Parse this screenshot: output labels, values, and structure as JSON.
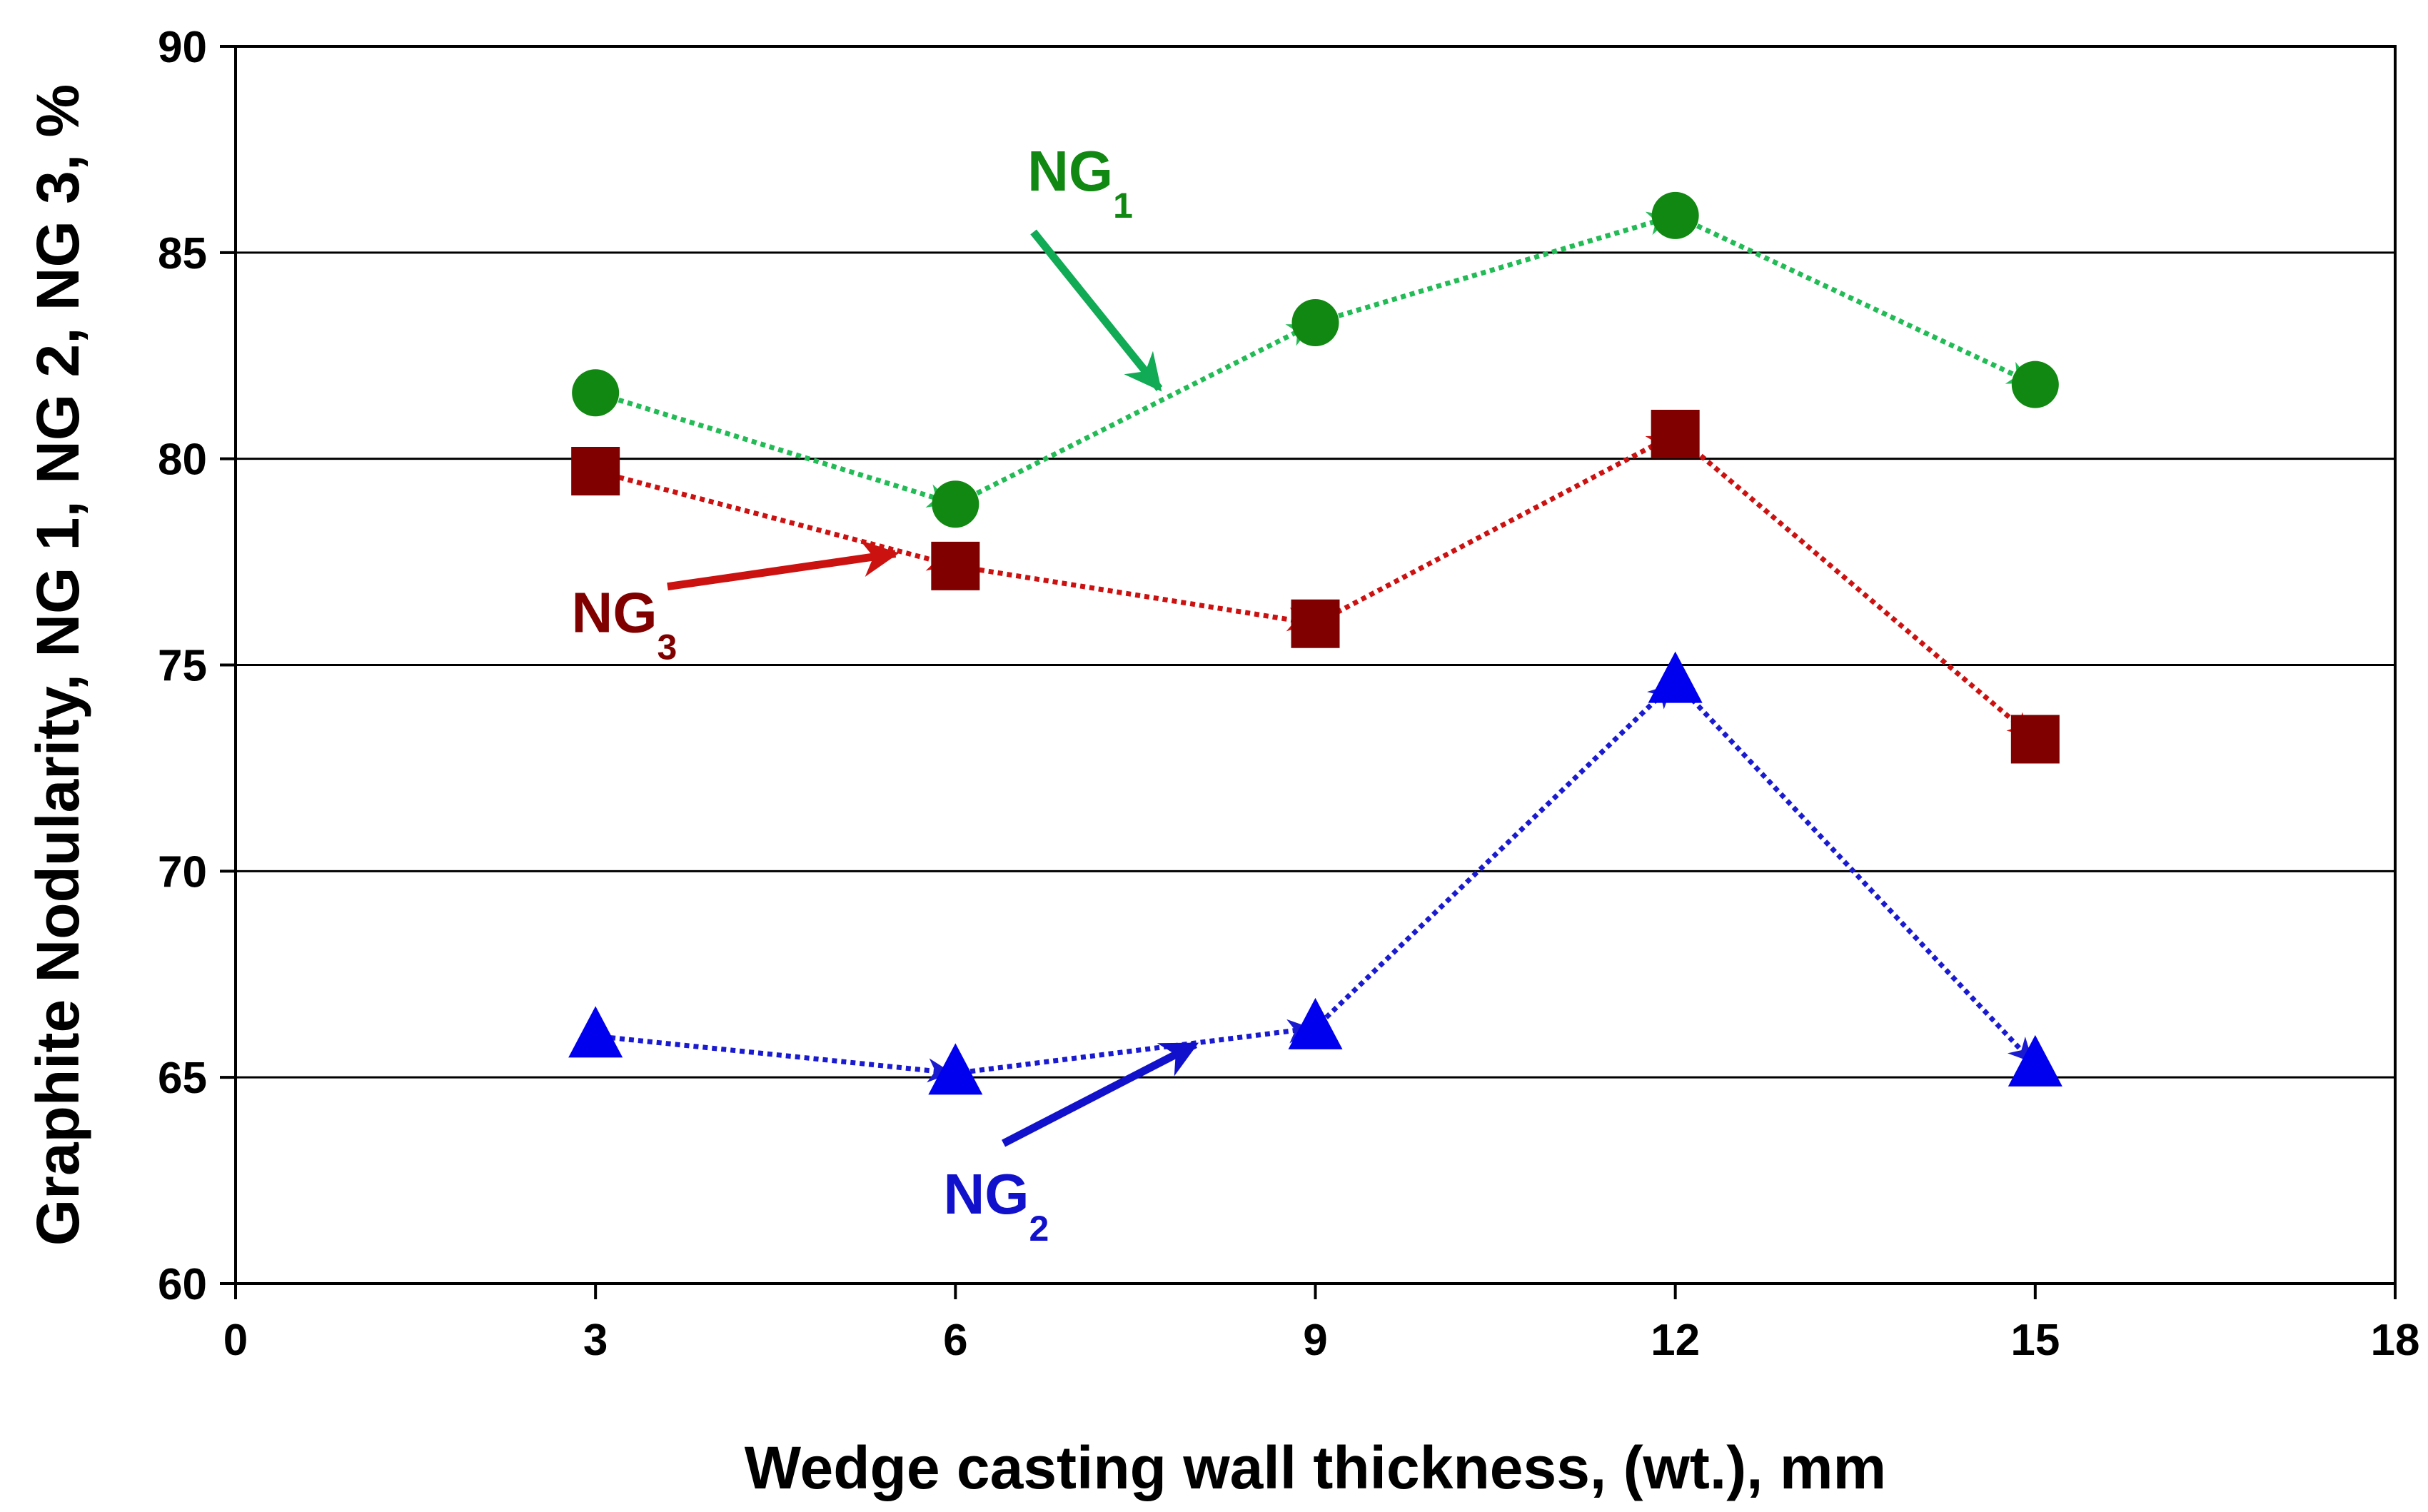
{
  "chart_data": {
    "type": "line",
    "title": "",
    "xlabel": "Wedge casting wall thickness, (wt.), mm",
    "ylabel": "Graphite Nodularity, NG 1, NG 2, NG 3, %",
    "xlim": [
      0,
      18
    ],
    "ylim": [
      60,
      90
    ],
    "xticks": [
      0,
      3,
      6,
      9,
      12,
      15,
      18
    ],
    "yticks": [
      60,
      65,
      70,
      75,
      80,
      85,
      90
    ],
    "grid": "horizontal",
    "x": [
      3,
      6,
      9,
      12,
      15
    ],
    "series": [
      {
        "name": "NG1",
        "label_main": "NG",
        "label_sub": "1",
        "marker": "circle",
        "marker_color": "#118811",
        "line_color": "#22bb55",
        "line_style": "dotted",
        "values": [
          81.6,
          78.9,
          83.3,
          85.9,
          81.8
        ]
      },
      {
        "name": "NG2",
        "label_main": "NG",
        "label_sub": "2",
        "marker": "triangle",
        "marker_color": "#0000ee",
        "line_color": "#1a1ad0",
        "line_style": "dotted",
        "values": [
          66.0,
          65.1,
          66.2,
          74.6,
          65.3
        ]
      },
      {
        "name": "NG3",
        "label_main": "NG",
        "label_sub": "3",
        "marker": "square",
        "marker_color": "#800000",
        "line_color": "#cc1111",
        "line_style": "dotted",
        "values": [
          79.7,
          77.4,
          76.0,
          80.6,
          73.2
        ]
      }
    ],
    "annotations": [
      {
        "series": "NG1",
        "color": "#11aa55",
        "text_main": "NG",
        "text_sub": "1",
        "text_color": "#118811",
        "text_anchor": [
          6.6,
          86.5
        ],
        "arrow_from": [
          6.65,
          85.5
        ],
        "arrow_to": [
          7.7,
          81.7
        ]
      },
      {
        "series": "NG2",
        "color": "#1111cc",
        "text_main": "NG",
        "text_sub": "2",
        "text_color": "#1111cc",
        "text_anchor": [
          5.9,
          61.7
        ],
        "arrow_from": [
          6.4,
          63.4
        ],
        "arrow_to": [
          8.0,
          65.8
        ]
      },
      {
        "series": "NG3",
        "color": "#cc1111",
        "text_main": "NG",
        "text_sub": "3",
        "text_color": "#800000",
        "text_anchor": [
          2.8,
          75.8
        ],
        "arrow_from": [
          3.6,
          76.9
        ],
        "arrow_to": [
          5.5,
          77.7
        ]
      }
    ]
  }
}
